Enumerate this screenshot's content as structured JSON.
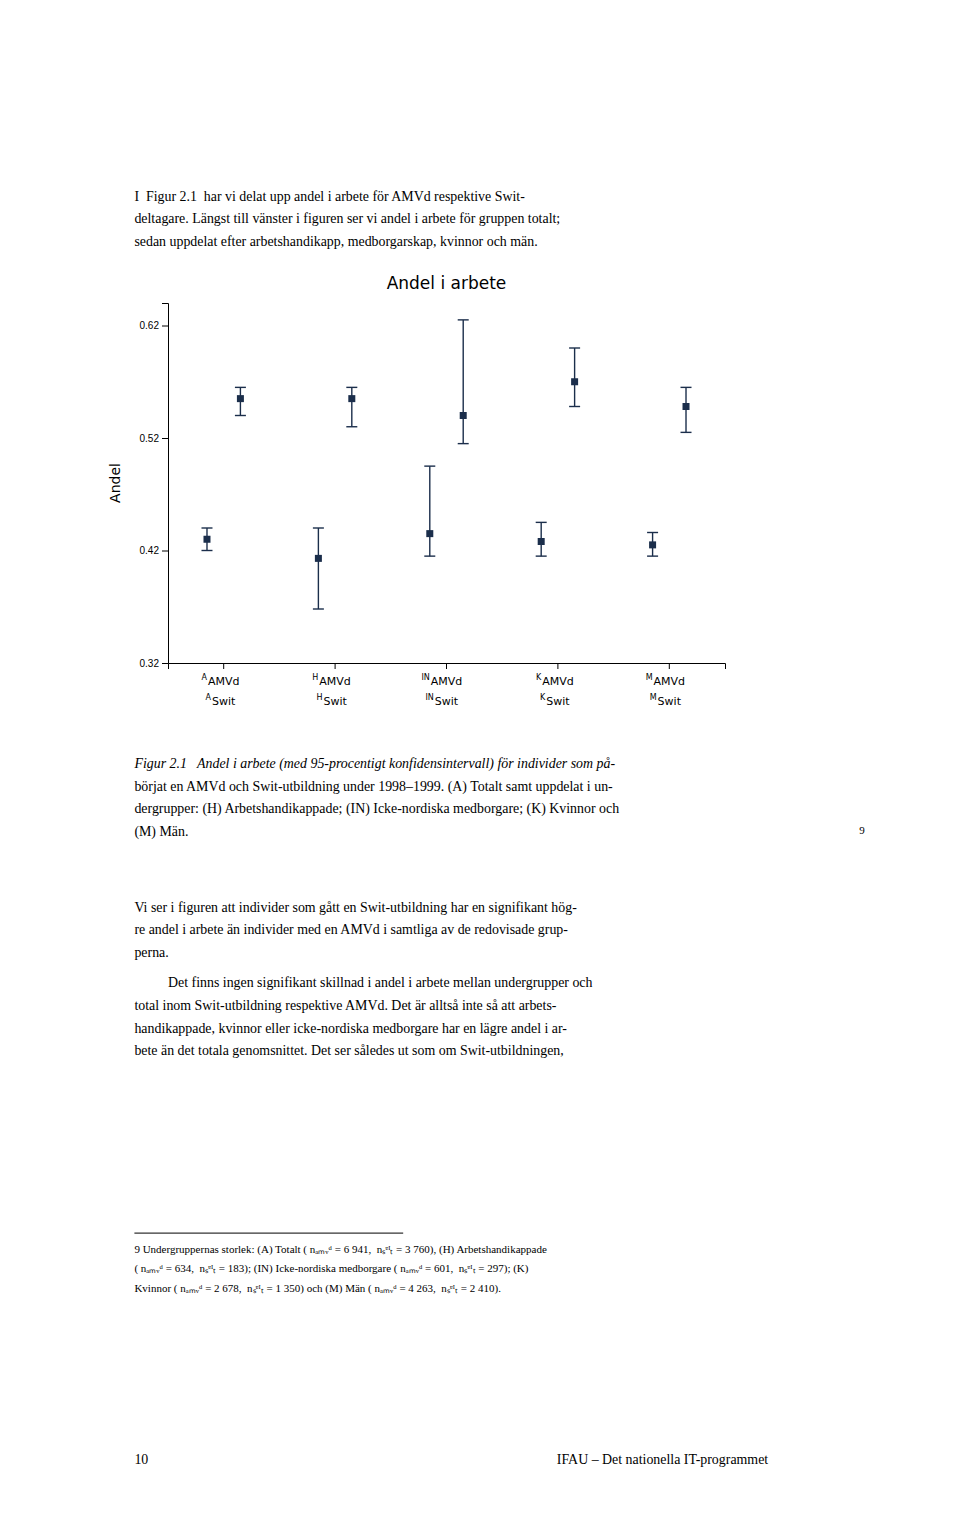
{
  "chart_data": {
    "type": "errorbar",
    "title": "Andel i arbete",
    "ylabel": "Andel",
    "categories": [
      "A",
      "H",
      "IN",
      "K",
      "M"
    ],
    "series": [
      {
        "name": "AMVd",
        "color": "#1b2e4b",
        "marker": "square",
        "values": [
          0.43,
          0.413,
          0.435,
          0.428,
          0.425
        ],
        "ci_low": [
          0.42,
          0.368,
          0.415,
          0.415,
          0.415
        ],
        "ci_high": [
          0.44,
          0.44,
          0.495,
          0.445,
          0.436
        ]
      },
      {
        "name": "Swit",
        "color": "#1b2e4b",
        "marker": "square",
        "values": [
          0.555,
          0.555,
          0.54,
          0.57,
          0.548
        ],
        "ci_low": [
          0.54,
          0.53,
          0.515,
          0.548,
          0.525
        ],
        "ci_high": [
          0.565,
          0.565,
          0.625,
          0.6,
          0.565
        ]
      }
    ],
    "ylim": [
      0.32,
      0.64
    ],
    "yticks": [
      0.32,
      0.42,
      0.52,
      0.62
    ],
    "grid": false
  },
  "page_text": {
    "intro": [
      "I  Figur 2.1  har vi delat upp andel i arbete för AMVd respektive Swit-",
      "deltagare. Längst till vänster i figuren ser vi andel i arbete för gruppen totalt;",
      "sedan uppdelat efter arbetshandikapp, medborgarskap, kvinnor och män."
    ],
    "caption": [
      "Figur 2.1   Andel i arbete (med 95-procentigt konfidensintervall) för individer som på-",
      "börjat en AMVd och Swit-utbildning under 1998–1999. (A) Totalt samt uppdelat i un-",
      "dergrupper: (H) Arbetshandikappade; (IN) Icke-nordiska medborgare; (K) Kvinnor och",
      "(M) Män."
    ],
    "caption_note": "9",
    "body": [
      [
        "Vi ser i figuren att individer som gått en Swit-utbildning har en signifikant hög-",
        "re andel i arbete än individer med en AMVd i samtliga av de redovisade grup-",
        "perna."
      ],
      [
        "Det finns ingen signifikant skillnad i andel i arbete mellan undergrupper och",
        "total inom Swit-utbildning respektive AMVd. Det är alltså inte så att arbets-",
        "handikappade, kvinnor eller icke-nordiska medborgare har en lägre andel i ar-",
        "bete än det totala genomsnittet. Det ser således ut som om Swit-utbildningen,"
      ]
    ],
    "footnote": [
      "9 Undergruppernas storlek: (A) Totalt ( nₐₘᵥᵈ = 6 941,  nₛᵄᴵₜ = 3 760), (H) Arbetshandikappade",
      "( nₐₘᵥᵈ = 634,  nₛᵄᴵₜ = 183); (IN) Icke-nordiska medborgare ( nₐₘᵥᵈ = 601,  nₛᵄᴵₜ = 297); (K)",
      "Kvinnor ( nₐₘᵥᵈ = 2 678,  nₛᵄᴵₜ = 1 350) och (M) Män ( nₐₘᵥᵈ = 4 263,  nₛᵄᴵₜ = 2 410)."
    ],
    "footer": [
      "10",
      "IFAU – Det nationella IT-programmet"
    ]
  }
}
